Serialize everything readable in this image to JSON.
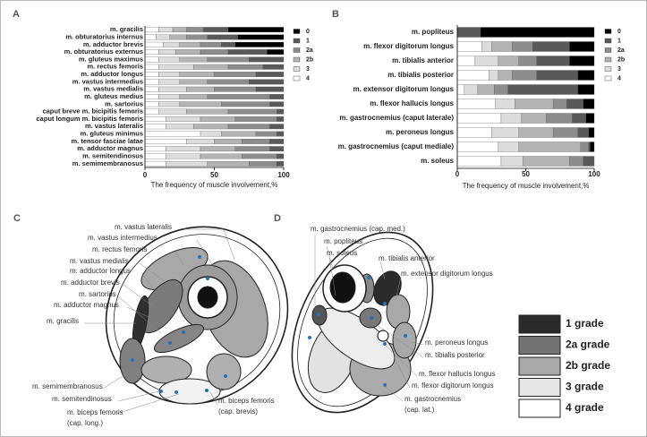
{
  "chart_data": [
    {
      "type": "bar",
      "label": "A",
      "orientation": "horizontal",
      "stacked": true,
      "categories": [
        "m. gracilis",
        "m. obturatorius internus",
        "m. adductor brevis",
        "m. obturatorius externus",
        "m. gluteus maximus",
        "m. rectus femoris",
        "m. adductor longus",
        "m. vastus intermedius",
        "m. vastus medialis",
        "m. gluteus medius",
        "m. sartorius",
        "caput breve m. bicipitis femoris",
        "caput longum m. bicipitis femoris",
        "m. vastus lateralis",
        "m. gluteus minimus",
        "m. tensor fasciae latae",
        "m. adductor magnus",
        "m. semitendinosus",
        "m. semimembranosus"
      ],
      "series": [
        {
          "name": "0",
          "color": "#000000",
          "values": [
            40,
            33,
            35,
            12,
            0,
            0,
            0,
            0,
            0,
            0,
            0,
            0,
            0,
            0,
            0,
            0,
            0,
            0,
            0
          ]
        },
        {
          "name": "1",
          "color": "#595959",
          "values": [
            18,
            22,
            10,
            28,
            25,
            15,
            20,
            25,
            20,
            10,
            10,
            5,
            5,
            10,
            5,
            10,
            10,
            5,
            5
          ]
        },
        {
          "name": "2a",
          "color": "#8c8c8c",
          "values": [
            12,
            15,
            15,
            20,
            30,
            25,
            30,
            30,
            30,
            45,
            35,
            35,
            30,
            30,
            15,
            20,
            25,
            25,
            20
          ]
        },
        {
          "name": "2b",
          "color": "#b3b3b3",
          "values": [
            10,
            12,
            15,
            18,
            20,
            25,
            25,
            20,
            20,
            20,
            30,
            30,
            25,
            25,
            25,
            20,
            25,
            30,
            30
          ]
        },
        {
          "name": "3",
          "color": "#dcdcdc",
          "values": [
            10,
            10,
            12,
            12,
            15,
            25,
            15,
            15,
            20,
            15,
            15,
            20,
            25,
            20,
            15,
            20,
            25,
            25,
            30
          ]
        },
        {
          "name": "4",
          "color": "#ffffff",
          "values": [
            10,
            8,
            13,
            10,
            10,
            10,
            10,
            10,
            10,
            10,
            10,
            10,
            15,
            15,
            40,
            30,
            15,
            15,
            15
          ]
        }
      ],
      "xlim": [
        0,
        100
      ],
      "xticks": [
        0,
        50,
        100
      ],
      "xlabel": "The frequency of muscle involvement,%"
    },
    {
      "type": "bar",
      "label": "B",
      "orientation": "horizontal",
      "stacked": true,
      "categories": [
        "m. popliteus",
        "m. flexor digitorum longus",
        "m. tibialis anterior",
        "m. tibialis posterior",
        "m. extensor digitorum longus",
        "m. flexor hallucis longus",
        "m. gastrocnemius (caput laterale)",
        "m. peroneus longus",
        "m. gastrocnemius (caput mediale)",
        "m. soleus"
      ],
      "series": [
        {
          "name": "0",
          "color": "#000000",
          "values": [
            83,
            18,
            18,
            12,
            12,
            8,
            6,
            4,
            3,
            0
          ]
        },
        {
          "name": "1",
          "color": "#595959",
          "values": [
            17,
            27,
            24,
            30,
            51,
            12,
            10,
            8,
            1,
            8
          ]
        },
        {
          "name": "2a",
          "color": "#8c8c8c",
          "values": [
            0,
            15,
            13,
            18,
            10,
            10,
            19,
            18,
            6,
            10
          ]
        },
        {
          "name": "2b",
          "color": "#b3b3b3",
          "values": [
            0,
            15,
            15,
            10,
            12,
            28,
            18,
            25,
            45,
            34
          ]
        },
        {
          "name": "3",
          "color": "#dcdcdc",
          "values": [
            0,
            7,
            17,
            7,
            10,
            14,
            15,
            20,
            15,
            16
          ]
        },
        {
          "name": "4",
          "color": "#ffffff",
          "values": [
            0,
            18,
            13,
            23,
            5,
            28,
            32,
            25,
            30,
            32
          ]
        }
      ],
      "xlim": [
        0,
        100
      ],
      "xticks": [
        0,
        50,
        100
      ],
      "xlabel": "The frequency of muscle involvement,%"
    }
  ],
  "diagrams": {
    "C": {
      "label": "C",
      "labels": [
        "m. vastus lateralis",
        "m. vastus intermedius",
        "m. rectus femoris",
        "m. vastus medialis",
        "m. adductor longus",
        "m. adductor brevis",
        "m. sartorius",
        "m. adductor magnus",
        "m. gracilis",
        "m. semimembranosus",
        "m. semitendinosus",
        "m. biceps femoris",
        "(cap. long.)",
        "m. biceps femoris",
        "(cap. brevis)"
      ]
    },
    "D": {
      "label": "D",
      "labels": [
        "m. gastrocnemius (cap. med.)",
        "m. popliteus",
        "m. soleus",
        "m. tibialis anterior",
        "m. extensor digitorum longus",
        "m. peroneus longus",
        "m. tibialis posterior",
        "m. flexor hallucis longus",
        "m. flexor digitorum longus",
        "m. gastrocnemius",
        "(cap. lat.)"
      ],
      "legend": [
        {
          "name": "1 grade",
          "color": "#2b2b2b"
        },
        {
          "name": "2a grade",
          "color": "#737373"
        },
        {
          "name": "2b grade",
          "color": "#a8a8a8"
        },
        {
          "name": "3 grade",
          "color": "#e6e6e6"
        },
        {
          "name": "4 grade",
          "color": "#ffffff"
        }
      ]
    }
  }
}
